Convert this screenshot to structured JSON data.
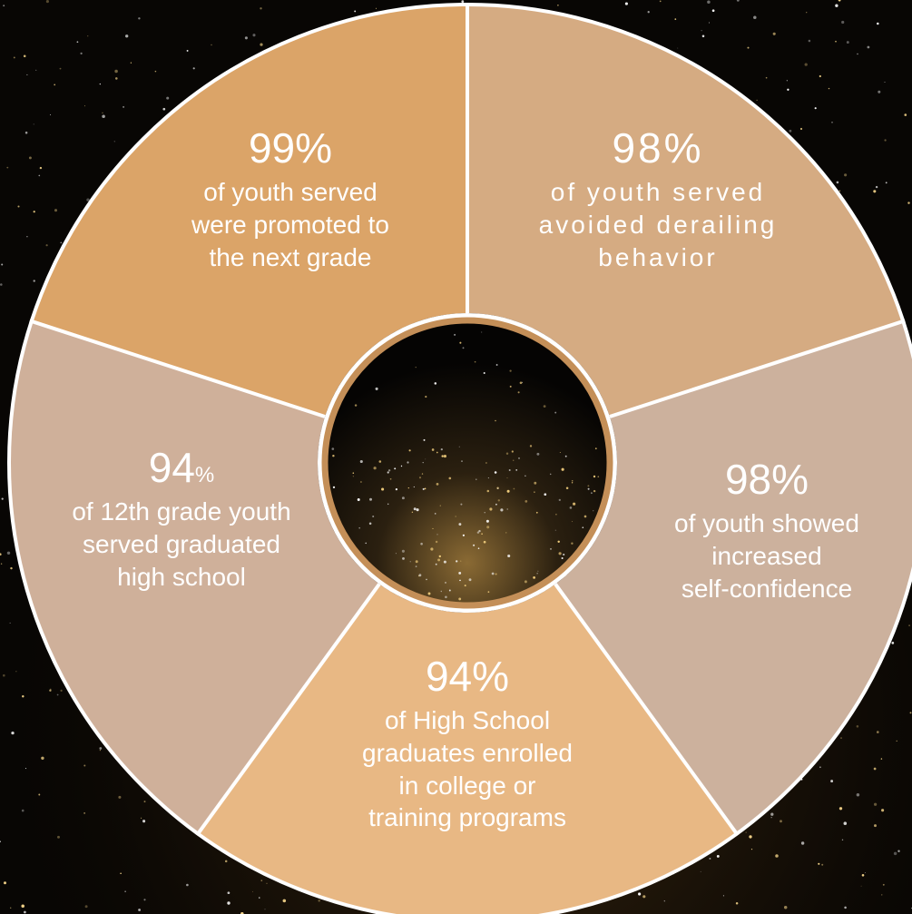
{
  "colors": {
    "background": "#080604",
    "segment_promoted": "#dba468",
    "segment_derailing": "#d5ab82",
    "segment_confidence": "#ccb19d",
    "segment_college": "#e8b884",
    "segment_graduated": "#cfb09a",
    "hub_ring": "#c48f58",
    "divider": "#ffffff"
  },
  "segments": [
    {
      "id": "promoted",
      "percent": "99%",
      "description": [
        "of youth served",
        "were promoted to",
        "the next grade"
      ]
    },
    {
      "id": "derailing",
      "percent": "98%",
      "description": [
        "of youth served",
        "avoided derailing",
        "behavior"
      ]
    },
    {
      "id": "confidence",
      "percent": "98%",
      "description": [
        "of youth showed",
        "increased",
        "self-confidence"
      ]
    },
    {
      "id": "college",
      "percent": "94%",
      "description": [
        "of High School",
        "graduates enrolled",
        "in college or",
        "training programs"
      ]
    },
    {
      "id": "graduated",
      "percent_number": "94",
      "percent_sign": "%",
      "description": [
        "of 12th grade youth",
        "served graduated",
        "high school"
      ]
    }
  ]
}
